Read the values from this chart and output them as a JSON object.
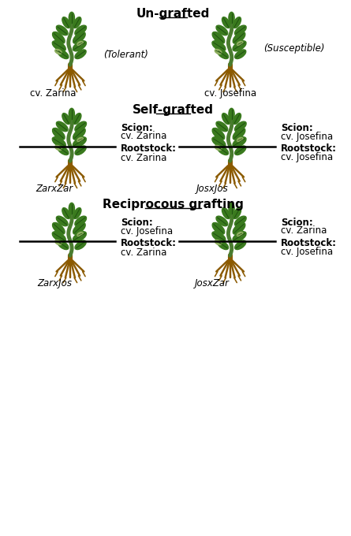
{
  "title_ungrafted": "Un-grafted",
  "title_selfgrafted": "Self-grafted",
  "title_reciprocous": "Reciprocous grafting",
  "background_color": "#ffffff",
  "text_color": "#000000",
  "plant_stem_color": "#4a7c2f",
  "plant_root_color": "#8B5A00",
  "plant_leaf_color": "#3a7a1e",
  "plant_bud_color": "#90b060",
  "graft_line_color": "#000000",
  "labels": {
    "ungrafted_left": {
      "tolerant": "(Tolerant)",
      "cv": "cv. Zarina"
    },
    "ungrafted_right": {
      "susceptible": "(Susceptible)",
      "cv": "cv. Josefina"
    },
    "selfgrafted_left": {
      "scion_label": "Scion:",
      "scion_cv": "cv. Zarina",
      "root_label": "Rootstock:",
      "root_cv": "cv. Zarina",
      "name": "ZarxZar"
    },
    "selfgrafted_right": {
      "scion_label": "Scion:",
      "scion_cv": "cv. Josefina",
      "root_label": "Rootstock:",
      "root_cv": "cv. Josefina",
      "name": "JosxJos"
    },
    "recip_left": {
      "scion_label": "Scion:",
      "scion_cv": "cv. Josefina",
      "root_label": "Rootstock:",
      "root_cv": "cv. Zarina",
      "name": "ZarxJos"
    },
    "recip_right": {
      "scion_label": "Scion:",
      "scion_cv": "cv. Zarina",
      "root_label": "Rootstock:",
      "root_cv": "cv. Josefina",
      "name": "JosxZar"
    }
  }
}
